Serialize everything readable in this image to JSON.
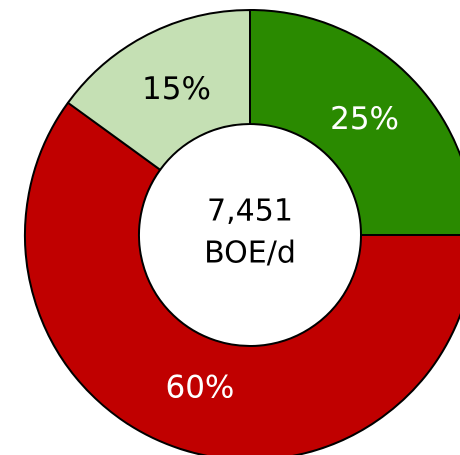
{
  "chart_data": {
    "type": "donut",
    "values": [
      25,
      60,
      15
    ],
    "value_labels": [
      "25%",
      "60%",
      "15%"
    ],
    "colors": [
      "#2a8a00",
      "#c00000",
      "#c5e0b4"
    ],
    "annotations": [
      "7,451",
      "BOE/d"
    ]
  }
}
